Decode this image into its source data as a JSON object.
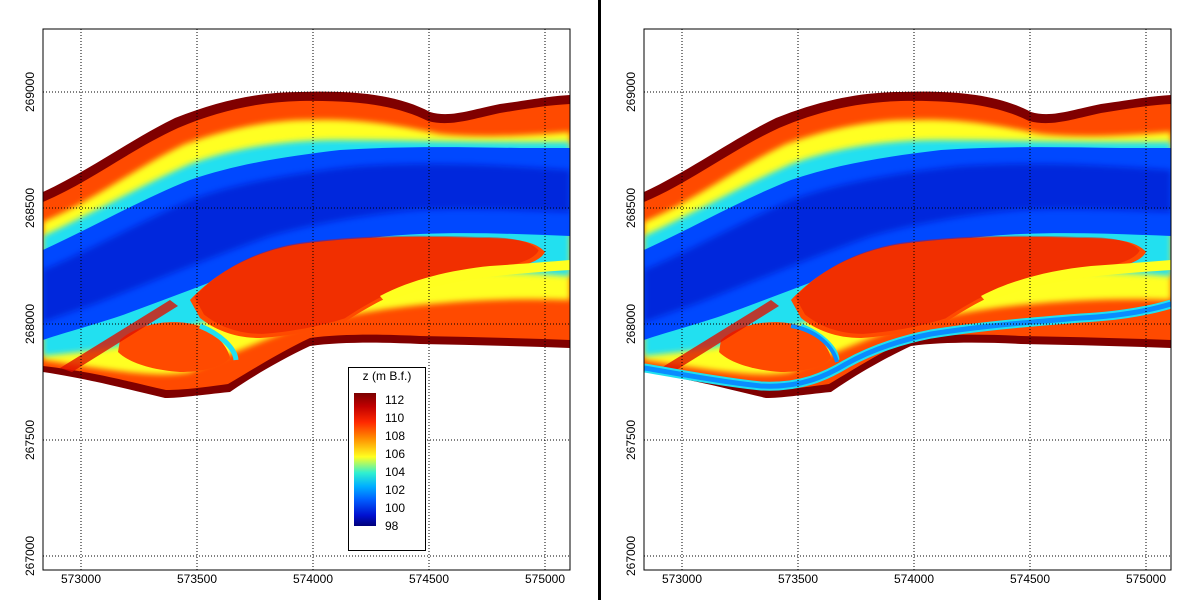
{
  "x_ticks": [
    "573000",
    "573500",
    "574000",
    "574500",
    "575000"
  ],
  "y_ticks": [
    "267000",
    "267500",
    "268000",
    "268500",
    "269000"
  ],
  "legend": {
    "title": "z (m B.f.)",
    "labels": [
      "112",
      "110",
      "108",
      "106",
      "104",
      "102",
      "100",
      "98"
    ]
  },
  "colors": {
    "dark_red": "#800000",
    "red": "#e01000",
    "orange_red": "#ff4a00",
    "orange": "#ff9a00",
    "yellow": "#ffff20",
    "green_yellow": "#b0ff50",
    "cyan": "#20e0f0",
    "light_blue": "#0a8cff",
    "blue": "#0048ff",
    "deep_blue": "#0010c0",
    "navy": "#00008a"
  },
  "panels": [
    {
      "id": "left",
      "channel_cut": false
    },
    {
      "id": "right",
      "channel_cut": true
    }
  ]
}
